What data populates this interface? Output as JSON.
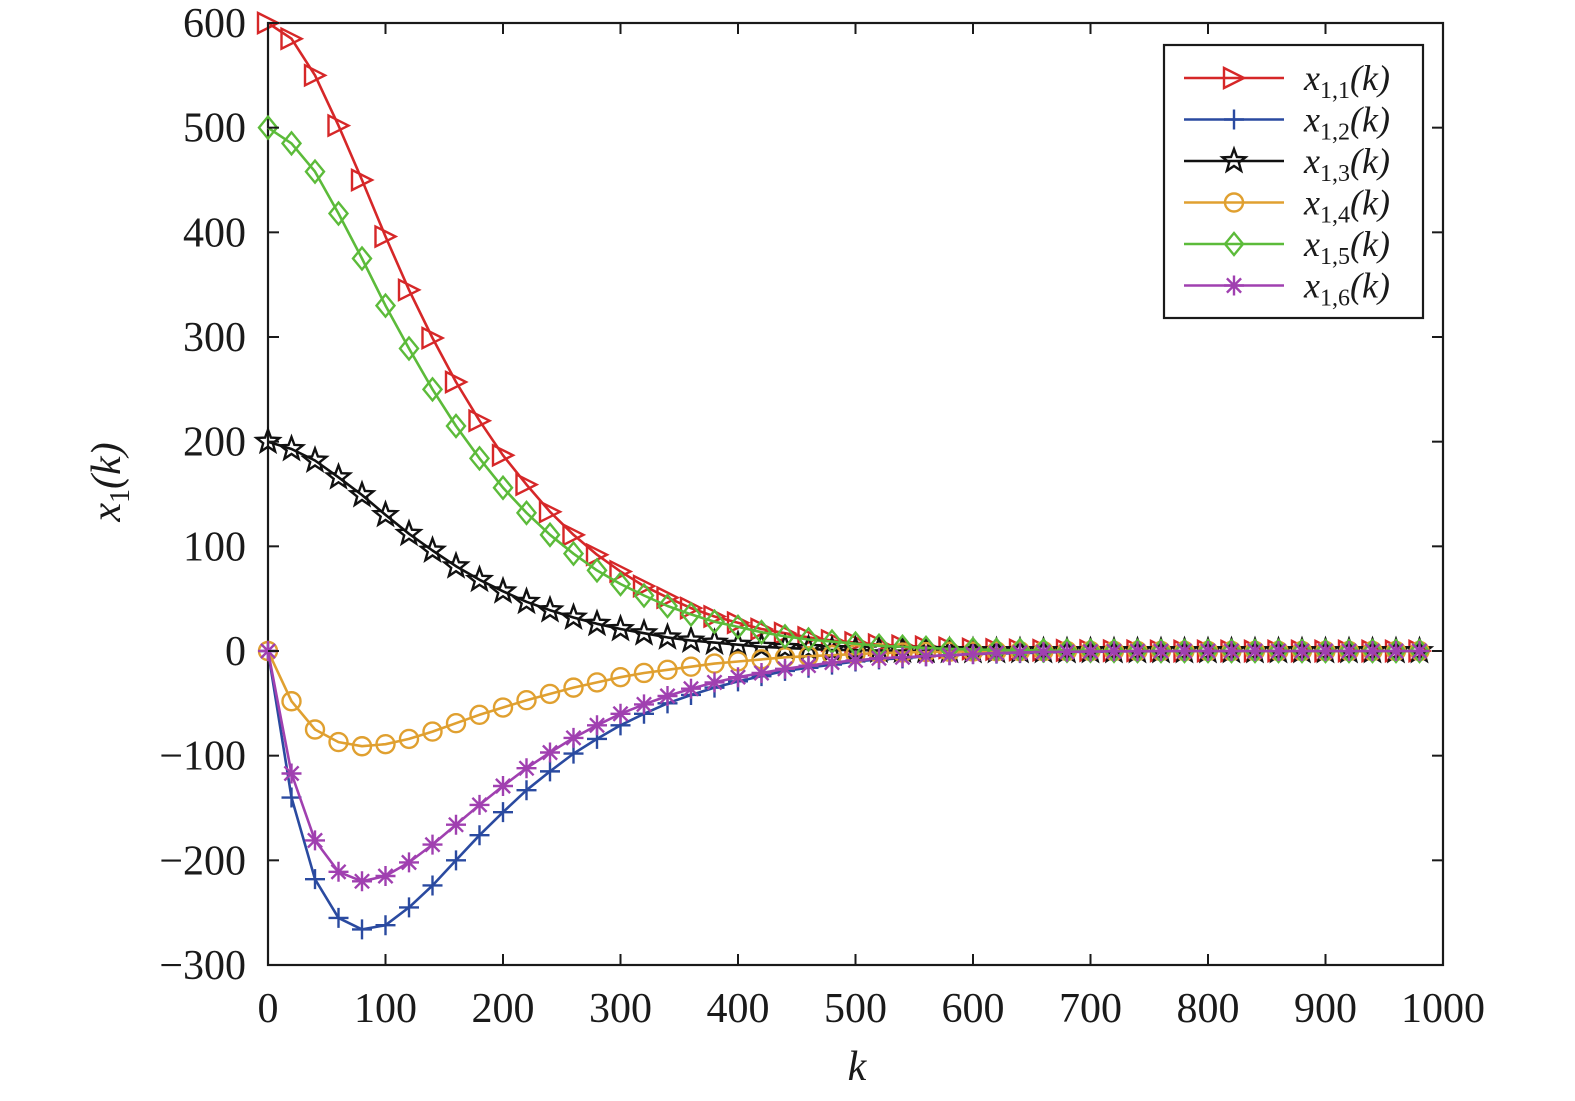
{
  "chart_data": {
    "type": "line",
    "xlabel": "k",
    "ylabel": {
      "base": "x",
      "sub": "1",
      "arg": "(k)"
    },
    "xlim": [
      0,
      1000
    ],
    "ylim": [
      -300,
      600
    ],
    "xticks": [
      0,
      100,
      200,
      300,
      400,
      500,
      600,
      700,
      800,
      900,
      1000
    ],
    "yticks": [
      -300,
      -200,
      -100,
      0,
      100,
      200,
      300,
      400,
      500,
      600
    ],
    "xtick_labels": [
      "0",
      "100",
      "200",
      "300",
      "400",
      "500",
      "600",
      "700",
      "800",
      "900",
      "1000"
    ],
    "ytick_labels": [
      "−300",
      "−200",
      "−100",
      "0",
      "100",
      "200",
      "300",
      "400",
      "500",
      "600"
    ],
    "grid": false,
    "legend_position": "top-right",
    "marker_x": [
      0,
      20,
      40,
      60,
      80,
      100,
      120,
      140,
      160,
      180,
      200,
      220,
      240,
      260,
      280,
      300,
      320,
      340,
      360,
      380,
      400,
      420,
      440,
      460,
      480,
      500,
      520,
      540,
      560,
      580,
      600,
      620,
      640,
      660,
      680,
      700,
      720,
      740,
      760,
      780,
      800,
      820,
      840,
      860,
      880,
      900,
      920,
      940,
      960,
      980
    ],
    "series": [
      {
        "name": "x1,1(k)",
        "legend": {
          "base": "x",
          "sub": "1,1",
          "arg": "(k)"
        },
        "color": "#d62728",
        "marker": "triangle-right",
        "y": [
          600,
          585,
          550,
          502,
          450,
          396,
          345,
          299,
          257,
          220,
          187,
          159,
          133,
          111,
          92,
          76,
          62,
          51,
          41,
          33,
          27,
          21,
          17,
          13,
          10,
          8,
          6,
          5,
          4,
          3,
          2,
          1.5,
          1,
          0.8,
          0.6,
          0.4,
          0.3,
          0.2,
          0.1,
          0,
          0,
          0,
          0,
          0,
          0,
          0,
          0,
          0,
          0,
          0
        ]
      },
      {
        "name": "x1,2(k)",
        "legend": {
          "base": "x",
          "sub": "1,2",
          "arg": "(k)"
        },
        "color": "#2a4aa0",
        "marker": "plus",
        "y": [
          0,
          -140,
          -218,
          -255,
          -266,
          -262,
          -245,
          -224,
          -200,
          -176,
          -154,
          -133,
          -115,
          -98,
          -84,
          -71,
          -60,
          -50,
          -42,
          -35,
          -29,
          -24,
          -19,
          -16,
          -13,
          -10,
          -8,
          -7,
          -5,
          -4,
          -3,
          -2.5,
          -2,
          -1.5,
          -1,
          -0.8,
          -0.5,
          -0.3,
          -0.2,
          -0.1,
          0,
          0,
          0,
          0,
          0,
          0,
          0,
          0,
          0,
          0
        ]
      },
      {
        "name": "x1,3(k)",
        "legend": {
          "base": "x",
          "sub": "1,3",
          "arg": "(k)"
        },
        "color": "#111111",
        "marker": "star",
        "y": [
          200,
          193,
          182,
          166,
          149,
          130,
          112,
          96,
          81,
          68,
          57,
          47,
          39,
          32,
          26,
          21,
          17,
          13,
          10,
          8,
          6,
          4,
          3,
          2,
          1,
          1,
          0.5,
          0.3,
          0.2,
          0.1,
          0,
          0,
          0,
          0,
          0,
          0,
          0,
          0,
          0,
          0,
          0,
          0,
          0,
          0,
          0,
          0,
          0,
          0,
          0,
          0
        ]
      },
      {
        "name": "x1,4(k)",
        "legend": {
          "base": "x",
          "sub": "1,4",
          "arg": "(k)"
        },
        "color": "#e0a030",
        "marker": "circle",
        "y": [
          0,
          -48,
          -75,
          -87,
          -91,
          -89,
          -84,
          -77,
          -69,
          -61,
          -54,
          -47,
          -41,
          -35,
          -30,
          -25,
          -21,
          -18,
          -15,
          -12,
          -10,
          -8,
          -6,
          -5,
          -4,
          -3,
          -2,
          -1.5,
          -1,
          -0.7,
          -0.5,
          -0.3,
          -0.2,
          -0.1,
          0,
          0,
          0,
          0,
          0,
          0,
          0,
          0,
          0,
          0,
          0,
          0,
          0,
          0,
          0,
          0
        ]
      },
      {
        "name": "x1,5(k)",
        "legend": {
          "base": "x",
          "sub": "1,5",
          "arg": "(k)"
        },
        "color": "#5cbb3a",
        "marker": "diamond",
        "y": [
          500,
          485,
          458,
          418,
          375,
          330,
          289,
          250,
          215,
          184,
          156,
          132,
          111,
          93,
          77,
          64,
          53,
          43,
          35,
          28,
          23,
          18,
          14,
          11,
          9,
          7,
          5,
          4,
          3,
          2,
          1.5,
          1,
          0.8,
          0.5,
          0.3,
          0.2,
          0.1,
          0,
          0,
          0,
          0,
          0,
          0,
          0,
          0,
          0,
          0,
          0,
          0,
          0
        ]
      },
      {
        "name": "x1,6(k)",
        "legend": {
          "base": "x",
          "sub": "1,6",
          "arg": "(k)"
        },
        "color": "#a040b0",
        "marker": "asterisk",
        "y": [
          0,
          -117,
          -181,
          -211,
          -220,
          -215,
          -202,
          -185,
          -166,
          -147,
          -129,
          -112,
          -97,
          -83,
          -71,
          -60,
          -51,
          -43,
          -36,
          -30,
          -25,
          -21,
          -17,
          -14,
          -11,
          -9,
          -7,
          -6,
          -5,
          -4,
          -3,
          -2,
          -1.5,
          -1,
          -0.8,
          -0.5,
          -0.3,
          -0.2,
          -0.1,
          0,
          0,
          0,
          0,
          0,
          0,
          0,
          0,
          0,
          0,
          0
        ]
      }
    ]
  }
}
